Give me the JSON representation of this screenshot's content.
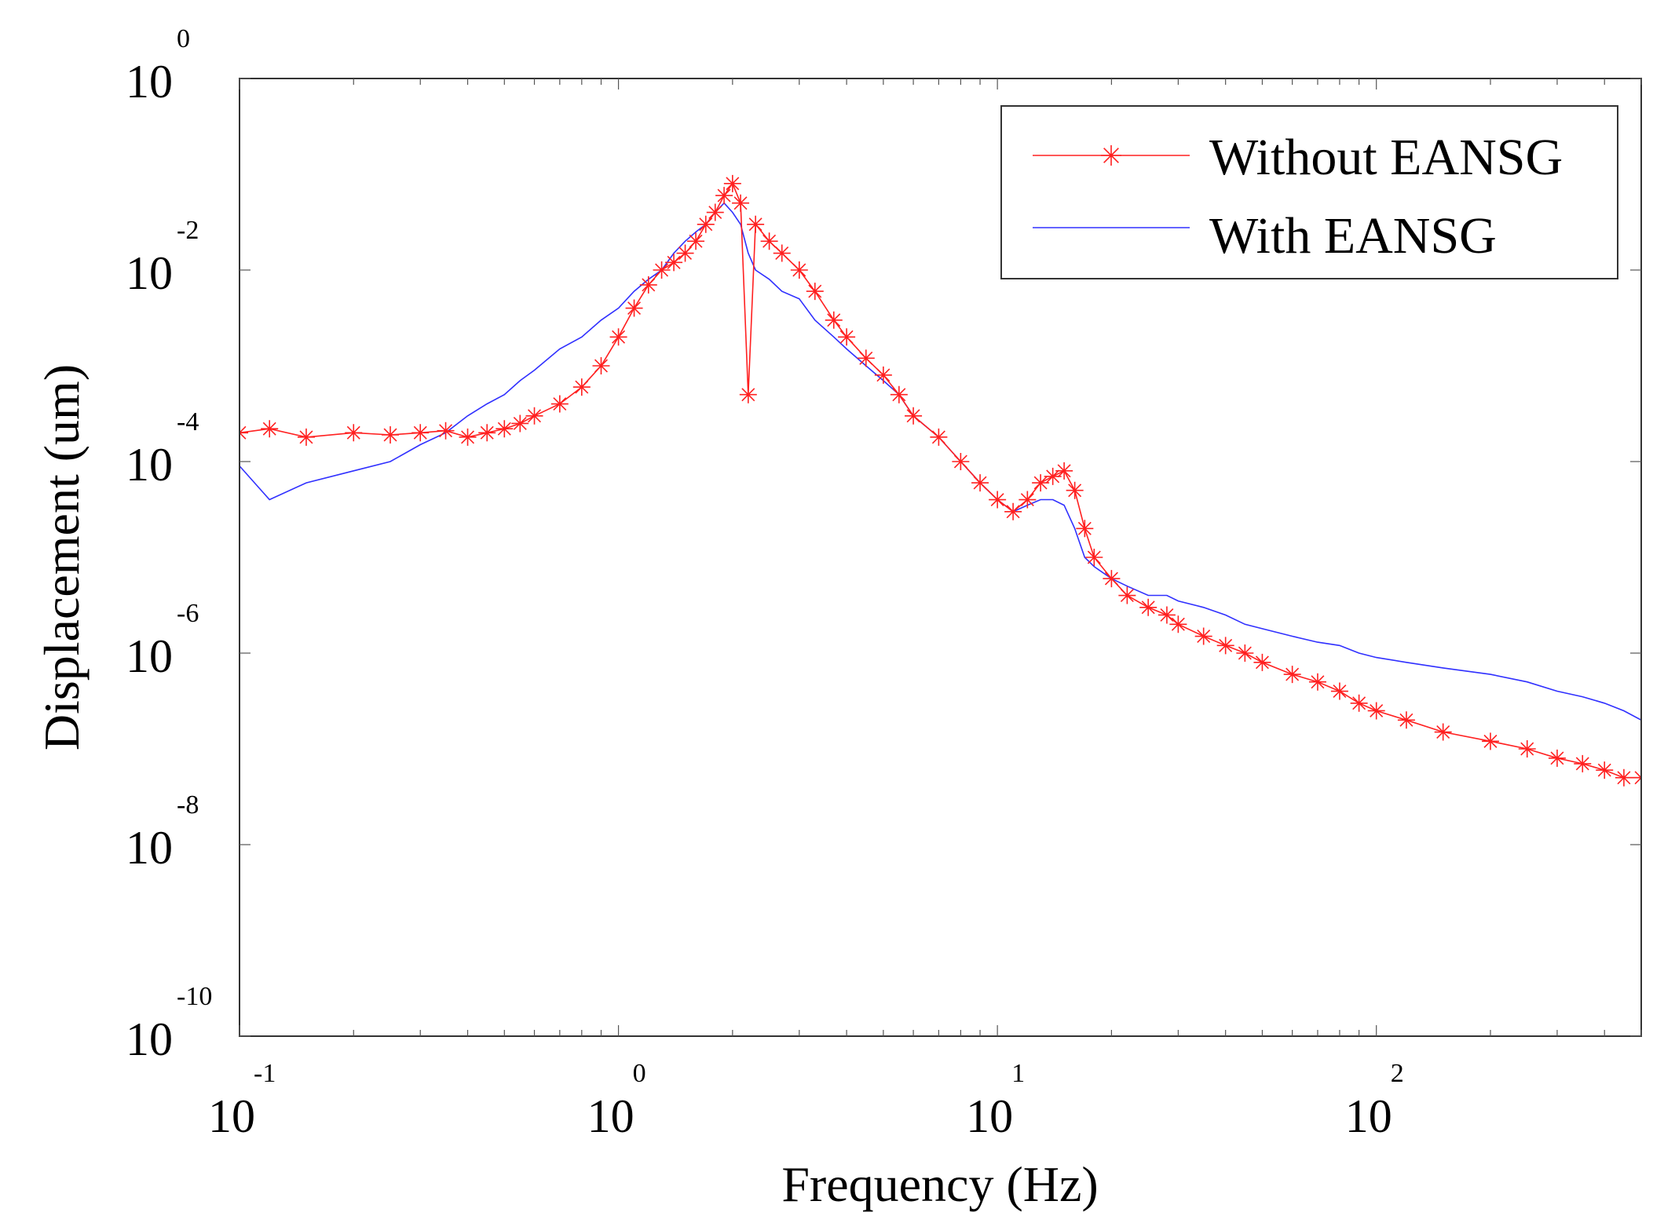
{
  "chart_data": {
    "type": "line",
    "title": "",
    "xlabel": "Frequency (Hz)",
    "ylabel": "Displacement (um)",
    "xscale": "log",
    "yscale": "log",
    "xlim": [
      0.1,
      500
    ],
    "ylim": [
      1e-10,
      1
    ],
    "grid": false,
    "legend_position": "top-right",
    "x_ticks": [
      {
        "base": "10",
        "exp": "-1",
        "value": 0.1
      },
      {
        "base": "10",
        "exp": "0",
        "value": 1
      },
      {
        "base": "10",
        "exp": "1",
        "value": 10
      },
      {
        "base": "10",
        "exp": "2",
        "value": 100
      }
    ],
    "y_ticks": [
      {
        "base": "10",
        "exp": "0",
        "value": 1
      },
      {
        "base": "10",
        "exp": "-2",
        "value": 0.01
      },
      {
        "base": "10",
        "exp": "-4",
        "value": 0.0001
      },
      {
        "base": "10",
        "exp": "-6",
        "value": 1e-06
      },
      {
        "base": "10",
        "exp": "-8",
        "value": 1e-08
      },
      {
        "base": "10",
        "exp": "-10",
        "value": 1e-10
      }
    ],
    "series": [
      {
        "name": "Without EANSG",
        "color": "#ff2020",
        "marker": "asterisk",
        "x": [
          0.1,
          0.12,
          0.15,
          0.2,
          0.25,
          0.3,
          0.35,
          0.4,
          0.45,
          0.5,
          0.55,
          0.6,
          0.7,
          0.8,
          0.9,
          1.0,
          1.1,
          1.2,
          1.3,
          1.4,
          1.5,
          1.6,
          1.7,
          1.8,
          1.9,
          2.0,
          2.1,
          2.2,
          2.3,
          2.5,
          2.7,
          3.0,
          3.3,
          3.7,
          4.0,
          4.5,
          5.0,
          5.5,
          6.0,
          7.0,
          8.0,
          9.0,
          10.0,
          11.0,
          12.0,
          13.0,
          14.0,
          15.0,
          16.0,
          17.0,
          18.0,
          20.0,
          22.0,
          25.0,
          28.0,
          30.0,
          35.0,
          40.0,
          45.0,
          50.0,
          60.0,
          70.0,
          80.0,
          90.0,
          100.0,
          120.0,
          150.0,
          200.0,
          250.0,
          300.0,
          350.0,
          400.0,
          450.0,
          500.0
        ],
        "y": [
          0.0002,
          0.00022,
          0.00018,
          0.0002,
          0.00019,
          0.0002,
          0.00021,
          0.00018,
          0.0002,
          0.00022,
          0.00025,
          0.0003,
          0.0004,
          0.0006,
          0.001,
          0.002,
          0.004,
          0.007,
          0.01,
          0.012,
          0.015,
          0.02,
          0.03,
          0.04,
          0.06,
          0.08,
          0.05,
          0.0005,
          0.03,
          0.02,
          0.015,
          0.01,
          0.006,
          0.003,
          0.002,
          0.0012,
          0.0008,
          0.0005,
          0.0003,
          0.00018,
          0.0001,
          6e-05,
          4e-05,
          3e-05,
          4e-05,
          6e-05,
          7e-05,
          8e-05,
          5e-05,
          2e-05,
          1e-05,
          6e-06,
          4e-06,
          3e-06,
          2.5e-06,
          2e-06,
          1.5e-06,
          1.2e-06,
          1e-06,
          8e-07,
          6e-07,
          5e-07,
          4e-07,
          3e-07,
          2.5e-07,
          2e-07,
          1.5e-07,
          1.2e-07,
          1e-07,
          8e-08,
          7e-08,
          6e-08,
          5e-08,
          5e-08
        ]
      },
      {
        "name": "With EANSG",
        "color": "#3030ff",
        "marker": "none",
        "x": [
          0.1,
          0.12,
          0.15,
          0.2,
          0.25,
          0.3,
          0.35,
          0.4,
          0.45,
          0.5,
          0.55,
          0.6,
          0.7,
          0.8,
          0.9,
          1.0,
          1.1,
          1.2,
          1.3,
          1.4,
          1.5,
          1.6,
          1.7,
          1.8,
          1.9,
          2.0,
          2.1,
          2.2,
          2.3,
          2.5,
          2.7,
          3.0,
          3.3,
          3.7,
          4.0,
          4.5,
          5.0,
          5.5,
          6.0,
          7.0,
          8.0,
          9.0,
          10.0,
          11.0,
          12.0,
          13.0,
          14.0,
          15.0,
          16.0,
          17.0,
          18.0,
          20.0,
          22.0,
          25.0,
          28.0,
          30.0,
          35.0,
          40.0,
          45.0,
          50.0,
          60.0,
          70.0,
          80.0,
          90.0,
          100.0,
          120.0,
          150.0,
          200.0,
          250.0,
          300.0,
          350.0,
          400.0,
          450.0,
          500.0
        ],
        "y": [
          9e-05,
          4e-05,
          6e-05,
          8e-05,
          0.0001,
          0.00015,
          0.0002,
          0.0003,
          0.0004,
          0.0005,
          0.0007,
          0.0009,
          0.0015,
          0.002,
          0.003,
          0.004,
          0.006,
          0.008,
          0.01,
          0.015,
          0.02,
          0.025,
          0.03,
          0.04,
          0.05,
          0.04,
          0.03,
          0.015,
          0.01,
          0.008,
          0.006,
          0.005,
          0.003,
          0.002,
          0.0015,
          0.001,
          0.0007,
          0.0005,
          0.0003,
          0.00018,
          0.0001,
          6e-05,
          4e-05,
          3e-05,
          3.5e-05,
          4e-05,
          4e-05,
          3.5e-05,
          2e-05,
          1e-05,
          8e-06,
          6e-06,
          5e-06,
          4e-06,
          4e-06,
          3.5e-06,
          3e-06,
          2.5e-06,
          2e-06,
          1.8e-06,
          1.5e-06,
          1.3e-06,
          1.2e-06,
          1e-06,
          9e-07,
          8e-07,
          7e-07,
          6e-07,
          5e-07,
          4e-07,
          3.5e-07,
          3e-07,
          2.5e-07,
          2e-07
        ]
      }
    ]
  }
}
